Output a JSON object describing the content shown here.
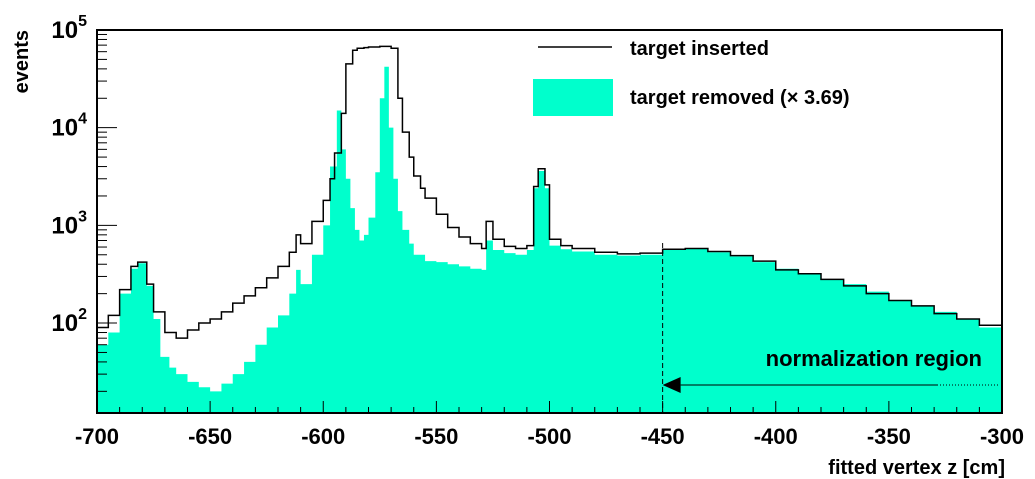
{
  "chart_data": {
    "type": "area",
    "title": "",
    "xlabel": "fitted vertex z [cm]",
    "ylabel": "events",
    "xlim": [
      -700,
      -300
    ],
    "ylim": [
      12,
      100000
    ],
    "log_y": true,
    "x_ticks": [
      "-700",
      "-650",
      "-600",
      "-550",
      "-500",
      "-450",
      "-400",
      "-350",
      "-300"
    ],
    "y_ticks": [
      {
        "base": "10",
        "exp": "2",
        "value": 100
      },
      {
        "base": "10",
        "exp": "3",
        "value": 1000
      },
      {
        "base": "10",
        "exp": "4",
        "value": 10000
      },
      {
        "base": "10",
        "exp": "5",
        "value": 100000
      }
    ],
    "legend": {
      "placement": "top-right",
      "line_label": "target inserted",
      "fill_label": "target removed (× 3.69)"
    },
    "annotation": {
      "text": "normalization region",
      "boundary_x": -450
    },
    "series": [
      {
        "name": "target inserted",
        "style": "step-line",
        "color": "#000000",
        "x": [
          -700,
          -695,
          -690,
          -685,
          -682,
          -678,
          -675,
          -670,
          -665,
          -660,
          -655,
          -650,
          -645,
          -640,
          -635,
          -630,
          -625,
          -620,
          -615,
          -612,
          -610,
          -605,
          -600,
          -597,
          -595,
          -592,
          -590,
          -587,
          -585,
          -582,
          -580,
          -575,
          -572,
          -570,
          -567,
          -565,
          -562,
          -560,
          -557,
          -555,
          -550,
          -545,
          -540,
          -535,
          -530,
          -528,
          -525,
          -520,
          -515,
          -510,
          -507,
          -505,
          -502,
          -500,
          -495,
          -490,
          -480,
          -470,
          -460,
          -450,
          -440,
          -430,
          -420,
          -410,
          -400,
          -390,
          -380,
          -370,
          -360,
          -350,
          -340,
          -330,
          -320,
          -310,
          -300
        ],
        "y": [
          90,
          120,
          220,
          380,
          420,
          250,
          130,
          80,
          70,
          85,
          100,
          110,
          130,
          160,
          190,
          230,
          290,
          380,
          530,
          800,
          650,
          1100,
          1800,
          3000,
          5500,
          14000,
          45000,
          62000,
          65000,
          66000,
          67000,
          68000,
          68000,
          65000,
          20000,
          9000,
          5000,
          3200,
          2400,
          1900,
          1300,
          950,
          760,
          650,
          580,
          1100,
          720,
          610,
          580,
          620,
          2500,
          3800,
          2600,
          720,
          620,
          580,
          530,
          510,
          520,
          570,
          580,
          540,
          490,
          430,
          350,
          320,
          280,
          240,
          200,
          170,
          150,
          125,
          110,
          95,
          80
        ]
      },
      {
        "name": "target removed (× 3.69)",
        "style": "filled-histogram",
        "color": "#00ffcc",
        "x": [
          -700,
          -695,
          -690,
          -685,
          -682,
          -678,
          -675,
          -672,
          -668,
          -665,
          -660,
          -655,
          -650,
          -645,
          -640,
          -635,
          -630,
          -625,
          -620,
          -615,
          -612,
          -610,
          -605,
          -600,
          -597,
          -594,
          -592,
          -590,
          -588,
          -586,
          -584,
          -582,
          -580,
          -577,
          -575,
          -573,
          -571,
          -569,
          -567,
          -565,
          -562,
          -560,
          -555,
          -550,
          -545,
          -540,
          -535,
          -530,
          -528,
          -525,
          -520,
          -515,
          -510,
          -507,
          -505,
          -502,
          -500,
          -495,
          -490,
          -480,
          -470,
          -460,
          -450,
          -440,
          -430,
          -420,
          -410,
          -400,
          -390,
          -380,
          -370,
          -360,
          -350,
          -340,
          -330,
          -320,
          -310,
          -300
        ],
        "y": [
          60,
          80,
          200,
          360,
          410,
          240,
          110,
          45,
          35,
          30,
          25,
          22,
          20,
          24,
          30,
          40,
          60,
          90,
          120,
          200,
          350,
          250,
          500,
          1000,
          4000,
          15000,
          6000,
          3000,
          1500,
          900,
          700,
          800,
          1200,
          3500,
          20000,
          42000,
          10000,
          3000,
          1400,
          900,
          650,
          500,
          430,
          420,
          400,
          380,
          360,
          350,
          700,
          560,
          520,
          500,
          560,
          2400,
          3600,
          2400,
          620,
          570,
          540,
          500,
          490,
          500,
          560,
          580,
          530,
          480,
          420,
          360,
          320,
          280,
          250,
          210,
          170,
          150,
          130,
          110,
          90,
          80
        ]
      }
    ]
  }
}
